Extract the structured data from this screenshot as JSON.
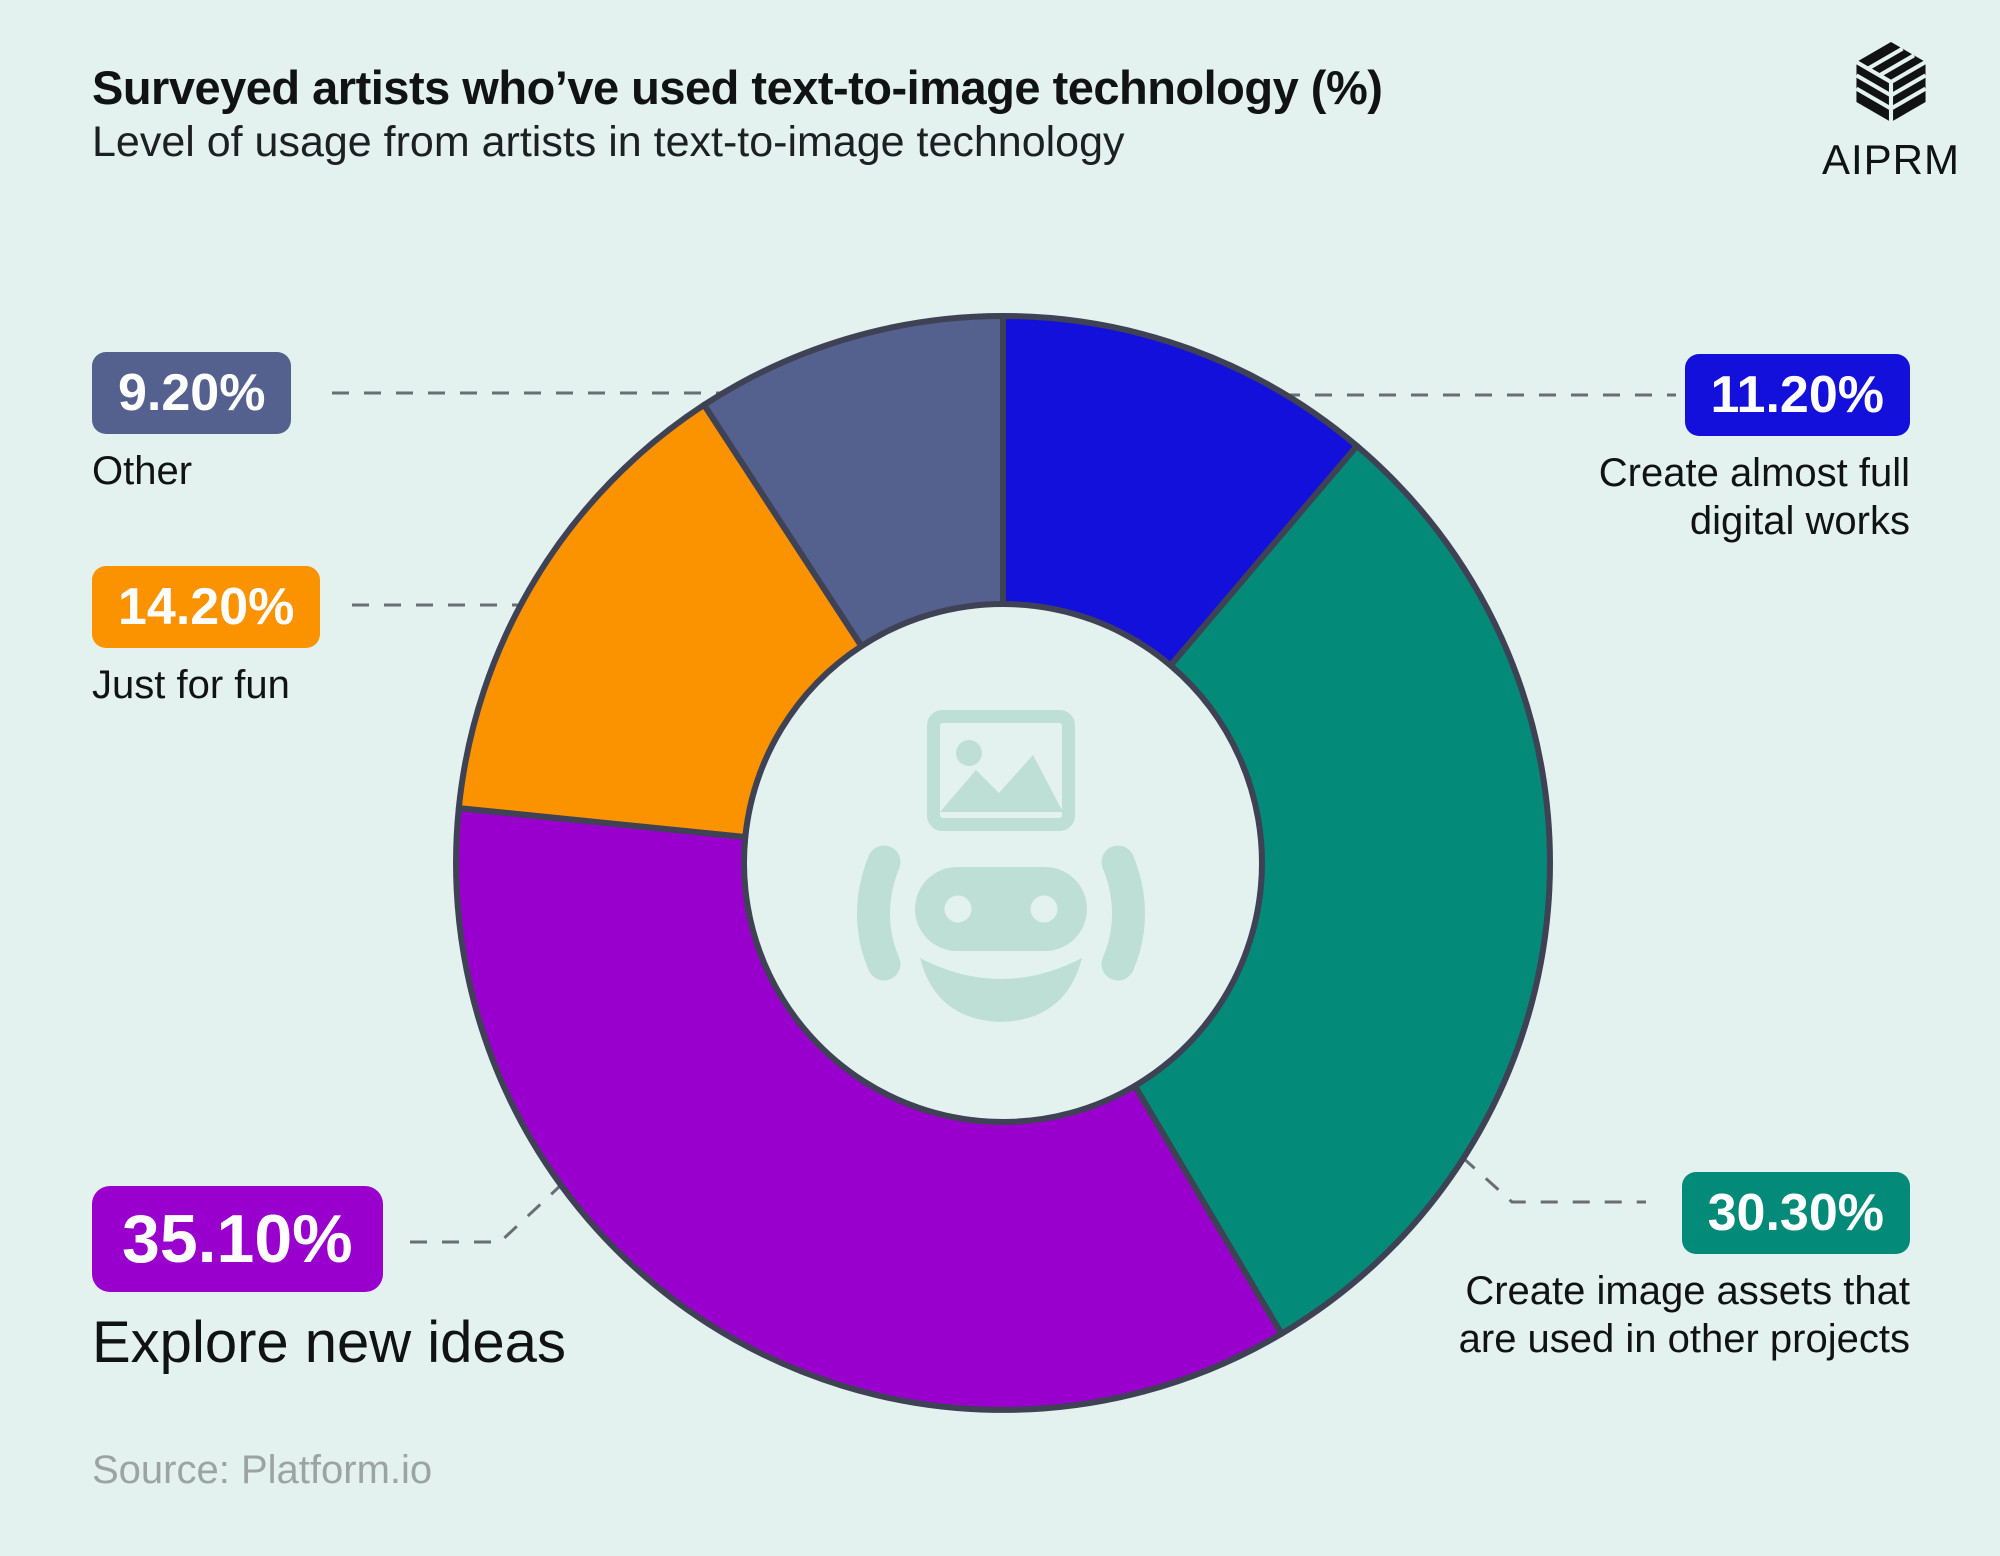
{
  "title": "Surveyed artists who’ve used text-to-image technology (%)",
  "subtitle": "Level of usage from artists in text-to-image technology",
  "brand": {
    "name": "AIPRM",
    "logo_icon": "aiprm-cube-logo"
  },
  "source": "Source: Platform.io",
  "colors": {
    "background": "#e3f2ee",
    "text": "#101214",
    "outline": "#3e4254",
    "connector": "#6a6e72",
    "source_text": "#9ba4a2",
    "center_icon": "#bedfd6"
  },
  "chart_data": {
    "type": "pie",
    "subtype": "donut",
    "title": "Surveyed artists who’ve used text-to-image technology (%)",
    "subtitle": "Level of usage from artists in text-to-image technology",
    "start_angle_deg": 0,
    "direction": "clockwise",
    "legend_position": "callout-labels",
    "center_icon": "text-to-image-robot-icon",
    "segments": [
      {
        "label": "Create almost full digital works",
        "value": 11.2,
        "display": "11.20%",
        "color": "#1410dc"
      },
      {
        "label": "Create image assets that are used in other projects",
        "value": 30.3,
        "display": "30.30%",
        "color": "#038a79"
      },
      {
        "label": "Explore new ideas",
        "value": 35.1,
        "display": "35.10%",
        "color": "#9a00cd"
      },
      {
        "label": "Just for fun",
        "value": 14.2,
        "display": "14.20%",
        "color": "#fb9200"
      },
      {
        "label": "Other",
        "value": 9.2,
        "display": "9.20%",
        "color": "#54618e"
      }
    ]
  }
}
